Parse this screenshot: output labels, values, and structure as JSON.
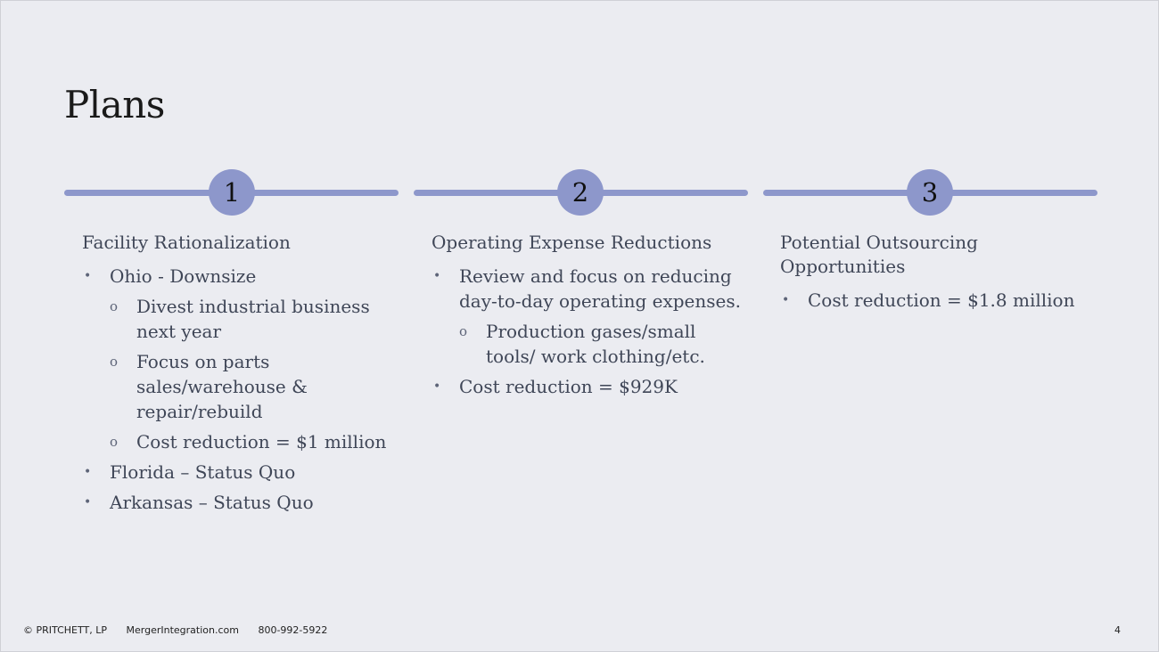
{
  "slide": {
    "title": "Plans"
  },
  "steps": [
    {
      "number": "1",
      "heading": "Facility Rationalization",
      "bullets": [
        {
          "text": "Ohio - Downsize",
          "sub": [
            "Divest industrial business next year",
            "Focus on parts sales/warehouse & repair/rebuild",
            "Cost reduction = $1 million"
          ]
        },
        {
          "text": "Florida – Status Quo"
        },
        {
          "text": "Arkansas – Status Quo"
        }
      ]
    },
    {
      "number": "2",
      "heading": "Operating Expense Reductions",
      "bullets": [
        {
          "text": "Review and focus on reducing day-to-day operating expenses.",
          "sub": [
            "Production gases/small tools/ work clothing/etc."
          ]
        },
        {
          "text": "Cost reduction = $929K"
        }
      ]
    },
    {
      "number": "3",
      "heading": "Potential Outsourcing Opportunities",
      "bullets": [
        {
          "text": "Cost reduction = $1.8 million"
        }
      ]
    }
  ],
  "bullet_glyphs": {
    "level1": "•",
    "level2": "o"
  },
  "footer": {
    "copyright": "© PRITCHETT, LP",
    "website": "MergerIntegration.com",
    "phone": "800-992-5922",
    "page_number": "4"
  },
  "colors": {
    "background": "#ebecf1",
    "accent": "#8d97cb",
    "text": "#3f4657"
  }
}
